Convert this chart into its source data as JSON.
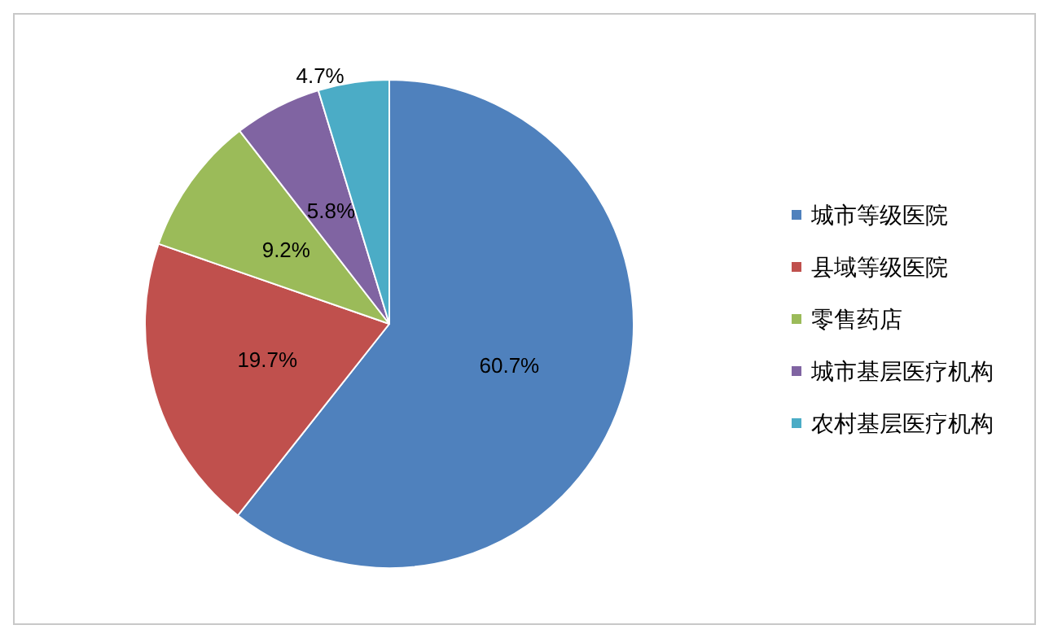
{
  "chart_data": {
    "type": "pie",
    "categories": [
      "城市等级医院",
      "县域等级医院",
      "零售药店",
      "城市基层医疗机构",
      "农村基层医疗机构"
    ],
    "values": [
      60.7,
      19.7,
      9.2,
      5.8,
      4.7
    ],
    "colors": [
      "#4f81bd",
      "#c0504d",
      "#9bbb59",
      "#8064a2",
      "#4bacc6"
    ],
    "value_labels": [
      "60.7%",
      "19.7%",
      "9.2%",
      "5.8%",
      "4.7%"
    ],
    "legend": "right"
  }
}
